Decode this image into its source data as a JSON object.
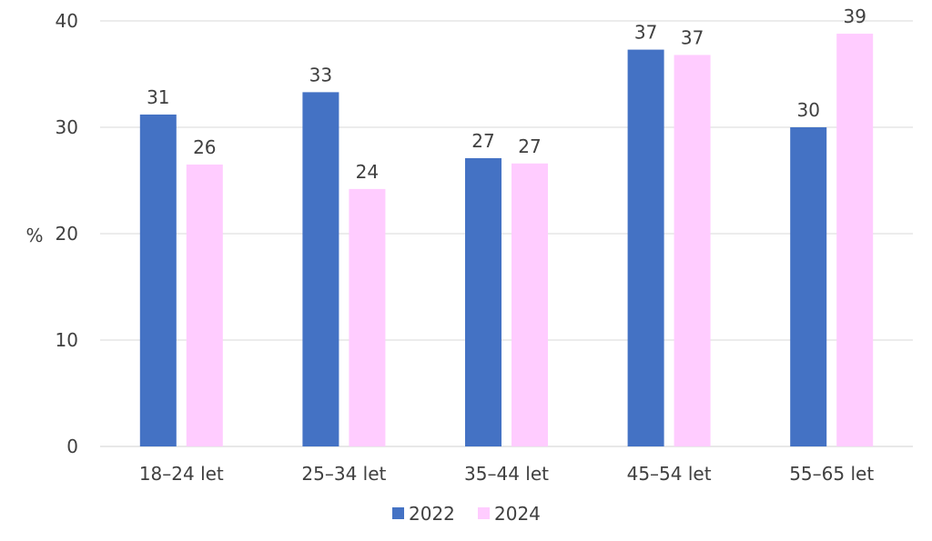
{
  "chart_data": {
    "type": "bar",
    "categories": [
      "18–24 let",
      "25–34 let",
      "35–44 let",
      "45–54 let",
      "55–65 let"
    ],
    "series": [
      {
        "name": "2022",
        "color": "#4472c4",
        "values": [
          31.2,
          33.3,
          27.1,
          37.3,
          30.0
        ],
        "labels": [
          "31",
          "33",
          "27",
          "37",
          "30"
        ]
      },
      {
        "name": "2024",
        "color": "#ffccff",
        "values": [
          26.5,
          24.2,
          26.6,
          36.8,
          38.8
        ],
        "labels": [
          "26",
          "24",
          "27",
          "37",
          "39"
        ]
      }
    ],
    "ylabel": "%",
    "ylim": [
      0,
      40
    ],
    "yticks": [
      "0",
      "10",
      "20",
      "30",
      "40"
    ],
    "grid": true,
    "legend_position": "bottom"
  }
}
